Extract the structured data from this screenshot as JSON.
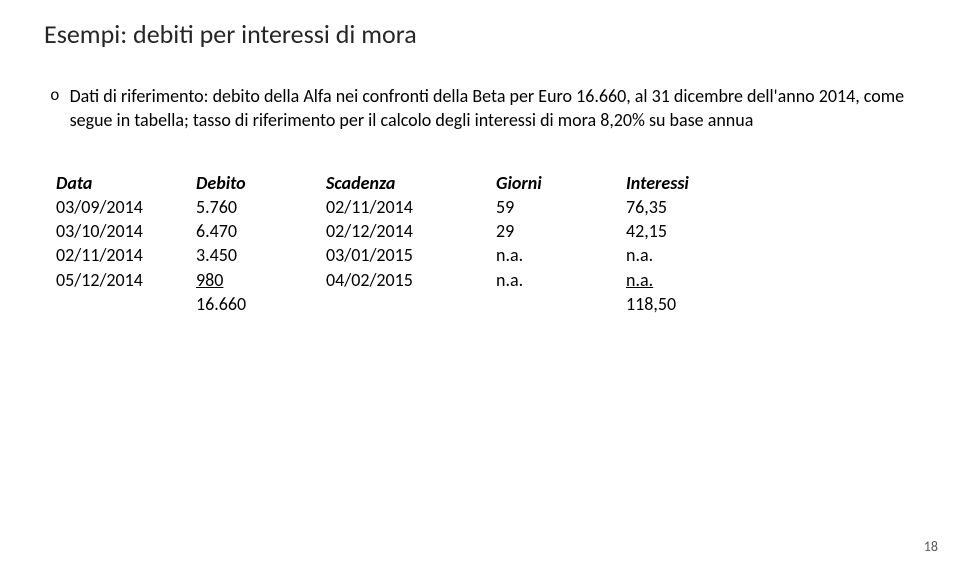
{
  "title": "Esempi: debiti per interessi di mora",
  "bullet": {
    "symbol": "o",
    "text": "Dati di riferimento: debito della Alfa nei confronti della Beta per Euro 16.660, al 31 dicembre dell'anno 2014, come segue in tabella; tasso di riferimento per il calcolo degli interessi di mora 8,20% su base annua"
  },
  "table": {
    "headers": {
      "c1": "Data",
      "c2": "Debito",
      "c3": "Scadenza",
      "c4": "Giorni",
      "c5": "Interessi"
    },
    "rows": [
      {
        "c1": "03/09/2014",
        "c2": "5.760",
        "c3": "02/11/2014",
        "c4": "59",
        "c5": "76,35"
      },
      {
        "c1": "03/10/2014",
        "c2": "6.470",
        "c3": "02/12/2014",
        "c4": "29",
        "c5": "42,15"
      },
      {
        "c1": "02/11/2014",
        "c2": "3.450",
        "c3": "03/01/2015",
        "c4": "n.a.",
        "c5": "n.a."
      },
      {
        "c1": "05/12/2014",
        "c2": "980",
        "c2_underline": true,
        "c3": "04/02/2015",
        "c4": "n.a.",
        "c5": "n.a.",
        "c5_underline": true
      }
    ],
    "totals": {
      "c2": "16.660",
      "c5": "118,50"
    }
  },
  "page_number": "18"
}
